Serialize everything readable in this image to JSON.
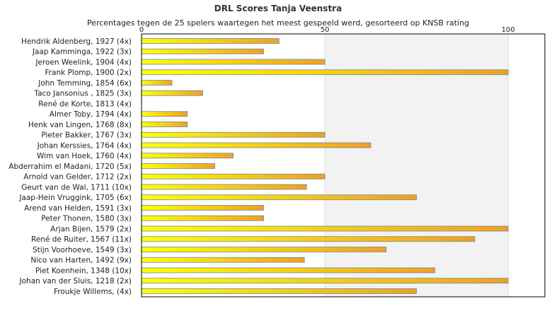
{
  "chart_data": {
    "type": "bar",
    "orientation": "horizontal",
    "title": "DRL Scores Tanja Veenstra",
    "subtitle": "Percentages tegen de 25 spelers waartegen het meest gespeeld werd, gesorteerd op KNSB rating",
    "categories": [
      "Hendrik Aldenberg, 1927 (4x)",
      "Jaap Kamminga, 1922 (3x)",
      "Jeroen Weelink, 1904 (4x)",
      "Frank Plomp, 1900 (2x)",
      "John Temming, 1854 (6x)",
      "Taco Jansonius , 1825 (3x)",
      "René de Korte, 1813 (4x)",
      "Almer Toby, 1794 (4x)",
      "Henk van Lingen, 1768 (8x)",
      "Pieter Bakker, 1767 (3x)",
      "Johan Kerssies, 1764 (4x)",
      "Wim van Hoek, 1760 (4x)",
      "Abderrahim el Madani, 1720 (5x)",
      "Arnold van Gelder, 1712 (2x)",
      "Geurt van de Wal, 1711 (10x)",
      "Jaap-Hein Vruggink, 1705 (6x)",
      "Arend van Helden, 1591 (3x)",
      "Peter Thonen, 1580 (3x)",
      "Arjan Bijen, 1579 (2x)",
      "René de Ruiter, 1567 (11x)",
      "Stijn Voorhoeve, 1549 (3x)",
      "Nico van Harten, 1492 (9x)",
      "Piet Koenhein, 1348 (10x)",
      "Johan van der Sluis, 1218 (2x)",
      "Froukje Willems,  (4x)"
    ],
    "values": [
      37.5,
      33.3,
      50,
      100,
      8.3,
      16.7,
      0,
      12.5,
      12.5,
      50,
      62.5,
      25,
      20,
      50,
      45,
      75,
      33.3,
      33.3,
      100,
      90.9,
      66.7,
      44.4,
      80,
      100,
      75
    ],
    "xlim": [
      0,
      110
    ],
    "xticks": [
      0,
      50,
      100
    ],
    "tick_labels": [
      "0",
      "50",
      "100"
    ],
    "grid": true,
    "colors": {
      "bar_start": "#ffff00",
      "bar_end": "#f0a020",
      "bar_stroke": "#6a8ab0",
      "shade_band": "#f2f2f2",
      "plot_border": "#000000",
      "grid_line": "#dddddd"
    }
  }
}
